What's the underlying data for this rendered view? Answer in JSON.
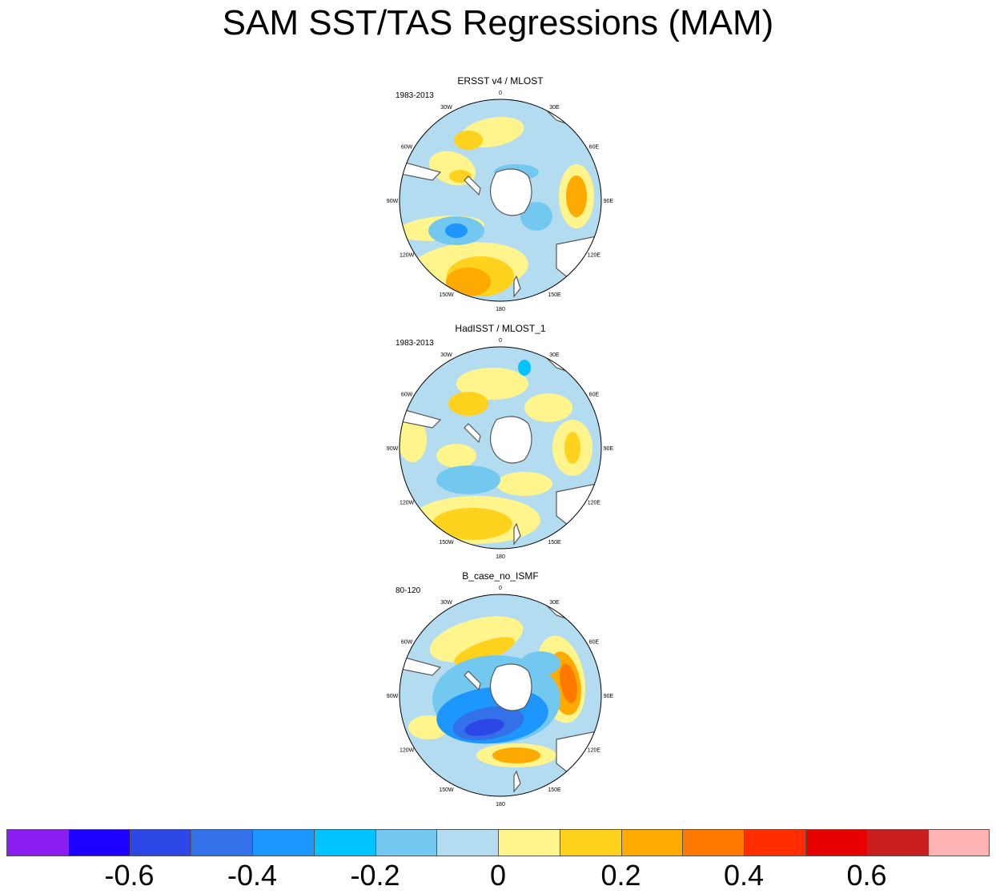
{
  "title": "SAM SST/TAS Regressions (MAM)",
  "chart_data": [
    {
      "type": "heatmap",
      "projection": "south-polar-stereographic",
      "title": "ERSST v4 / MLOST",
      "period": "1983-2013",
      "lon_labels": [
        "0",
        "30E",
        "60E",
        "90E",
        "120E",
        "150E",
        "180",
        "150W",
        "120W",
        "90W",
        "60W",
        "30W"
      ]
    },
    {
      "type": "heatmap",
      "projection": "south-polar-stereographic",
      "title": "HadISST / MLOST_1",
      "period": "1983-2013",
      "lon_labels": [
        "0",
        "30E",
        "60E",
        "90E",
        "120E",
        "150E",
        "180",
        "150W",
        "120W",
        "90W",
        "60W",
        "30W"
      ]
    },
    {
      "type": "heatmap",
      "projection": "south-polar-stereographic",
      "title": "B_case_no_ISMF",
      "period": "80-120",
      "lon_labels": [
        "0",
        "30E",
        "60E",
        "90E",
        "120E",
        "150E",
        "180",
        "150W",
        "120W",
        "90W",
        "60W",
        "30W"
      ]
    }
  ],
  "colorbar": {
    "colors": [
      "#8a1ef0",
      "#1e00ff",
      "#2d46e6",
      "#3271e8",
      "#1e96ff",
      "#00c3ff",
      "#73c8f0",
      "#b4dcf0",
      "#fff58c",
      "#ffd21e",
      "#ffaa00",
      "#ff7800",
      "#ff2d00",
      "#e60000",
      "#c81e1e",
      "#ffb4b4"
    ],
    "levels": [
      -0.7,
      -0.6,
      -0.5,
      -0.4,
      -0.3,
      -0.2,
      -0.1,
      0,
      0.1,
      0.2,
      0.3,
      0.4,
      0.5,
      0.6,
      0.7
    ],
    "tick_labels": [
      "-0.6",
      "-0.4",
      "-0.2",
      "0",
      "0.2",
      "0.4",
      "0.6"
    ]
  }
}
